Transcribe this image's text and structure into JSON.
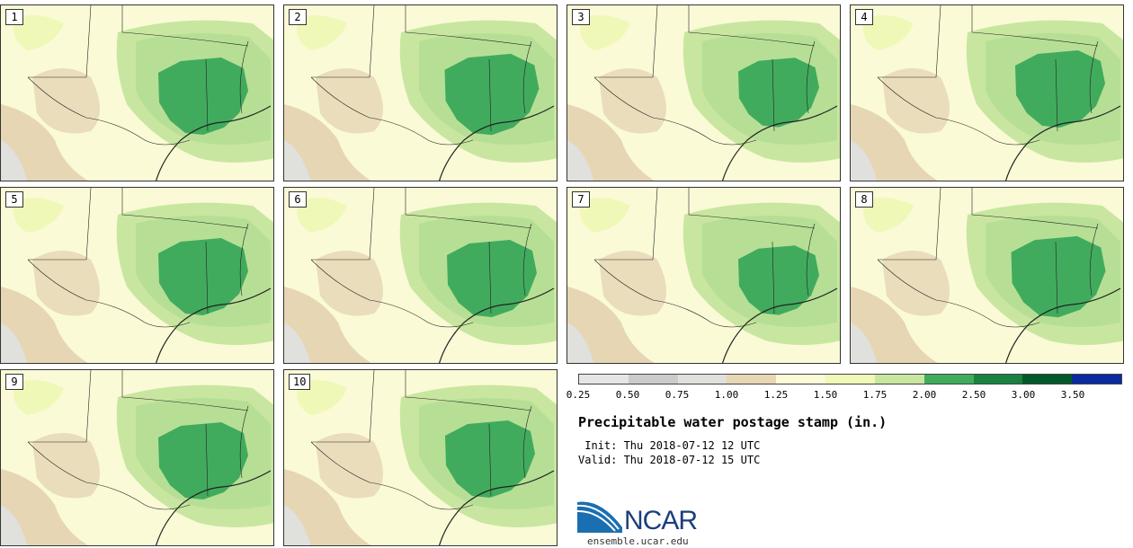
{
  "panels": [
    {
      "label": "1",
      "blob": [
        0,
        0,
        1.0
      ]
    },
    {
      "label": "2",
      "blob": [
        6,
        -2,
        1.05
      ]
    },
    {
      "label": "3",
      "blob": [
        10,
        -4,
        0.9
      ]
    },
    {
      "label": "4",
      "blob": [
        8,
        -8,
        1.0
      ]
    },
    {
      "label": "5",
      "blob": [
        0,
        -2,
        1.0
      ]
    },
    {
      "label": "6",
      "blob": [
        6,
        0,
        1.0
      ]
    },
    {
      "label": "7",
      "blob": [
        10,
        2,
        0.9
      ]
    },
    {
      "label": "8",
      "blob": [
        6,
        -2,
        1.05
      ]
    },
    {
      "label": "9",
      "blob": [
        0,
        0,
        1.0
      ]
    },
    {
      "label": "10",
      "blob": [
        4,
        -2,
        1.0
      ]
    }
  ],
  "colors": {
    "c025": "#e5e5e5",
    "c050": "#cbcbcb",
    "c075": "#e0e0dc",
    "c100": "#e6d6b4",
    "c125": "#fafad6",
    "c150": "#f0f8b8",
    "c175": "#c8e6a0",
    "c200": "#a8d88c",
    "c250": "#41ab5d",
    "c300": "#1a8240",
    "c350": "#00592a",
    "c400": "#0a2ca0",
    "border": "#222222",
    "brand": "#1a3f7a"
  },
  "colorbar": {
    "swatches": [
      "#e5e5e5",
      "#cbcbcb",
      "#e0e0dc",
      "#e6d6b4",
      "#fafad6",
      "#f0f8b8",
      "#c8e6a0",
      "#41ab5d",
      "#1a8240",
      "#00592a",
      "#0a2ca0"
    ],
    "ticks": [
      "0.25",
      "0.50",
      "0.75",
      "1.00",
      "1.25",
      "1.50",
      "1.75",
      "2.00",
      "2.50",
      "3.00",
      "3.50"
    ]
  },
  "title": "Precipitable water postage stamp (in.)",
  "init_line": " Init: Thu 2018-07-12 12 UTC",
  "valid_line": "Valid: Thu 2018-07-12 15 UTC",
  "logo_text": "NCAR",
  "site": "ensemble.ucar.edu"
}
